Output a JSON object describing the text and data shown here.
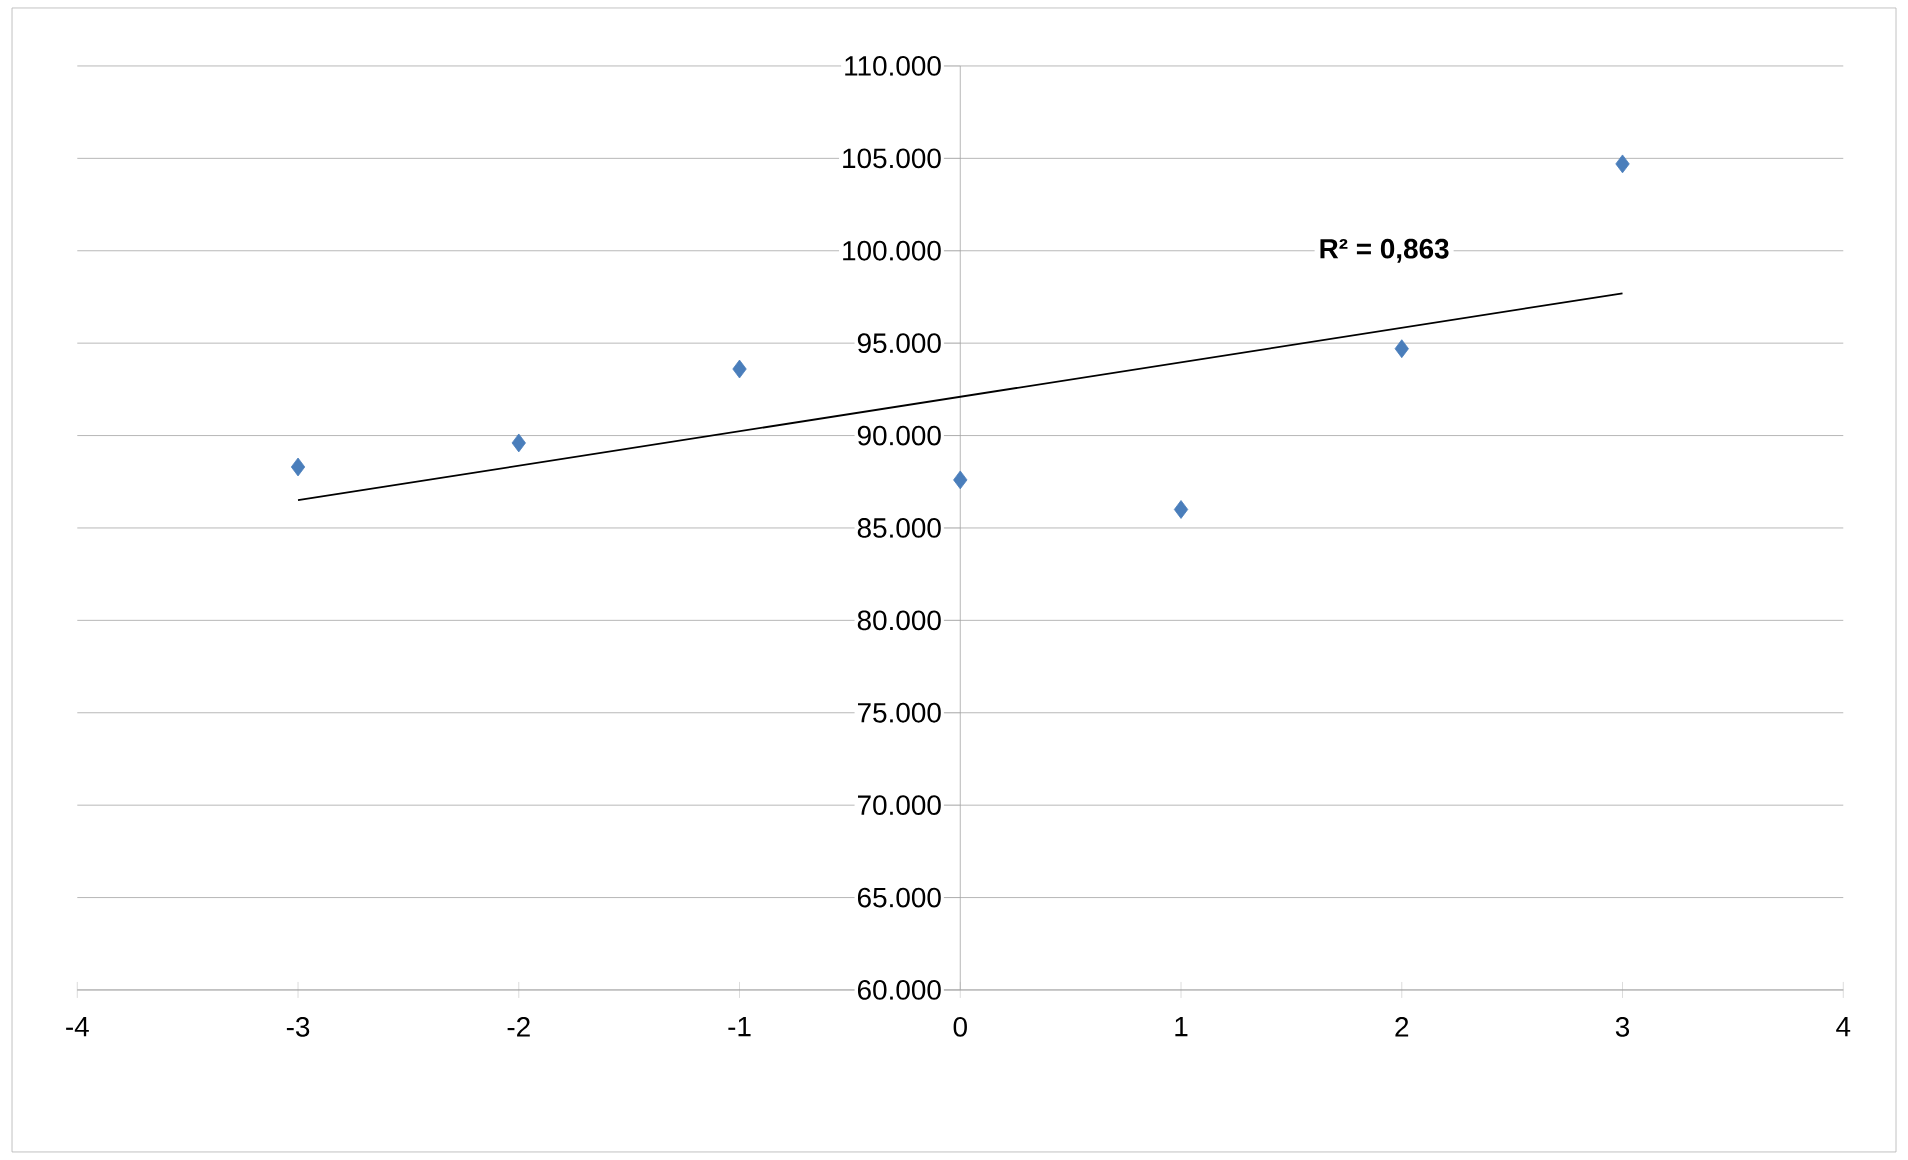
{
  "chart_data": {
    "type": "scatter",
    "x": [
      -3,
      -2,
      -1,
      0,
      1,
      2,
      3
    ],
    "series": [
      {
        "color": "#4a7ebb",
        "marker": "diamond",
        "values": [
          88300,
          89600,
          93600,
          87600,
          86000,
          94700,
          104700
        ]
      },
      {
        "type": "line",
        "color": "#000000",
        "marker": "none",
        "x": [
          -3,
          3
        ],
        "values": [
          86500,
          97700
        ]
      }
    ],
    "xlim": [
      -4,
      4
    ],
    "xticks": [
      -4,
      -3,
      -2,
      -1,
      0,
      1,
      2,
      3,
      4
    ],
    "ylim": [
      60000,
      110000
    ],
    "yticks": [
      {
        "value": 60000,
        "label": "60.000"
      },
      {
        "value": 65000,
        "label": "65.000"
      },
      {
        "value": 70000,
        "label": "70.000"
      },
      {
        "value": 75000,
        "label": "75.000"
      },
      {
        "value": 80000,
        "label": "80.000"
      },
      {
        "value": 85000,
        "label": "85.000"
      },
      {
        "value": 90000,
        "label": "90.000"
      },
      {
        "value": 95000,
        "label": "95.000"
      },
      {
        "value": 100000,
        "label": "100.000"
      },
      {
        "value": 105000,
        "label": "105.000"
      },
      {
        "value": 110000,
        "label": "110.000"
      }
    ],
    "grid": "y",
    "annotations": [
      "R² = 0,863"
    ]
  }
}
